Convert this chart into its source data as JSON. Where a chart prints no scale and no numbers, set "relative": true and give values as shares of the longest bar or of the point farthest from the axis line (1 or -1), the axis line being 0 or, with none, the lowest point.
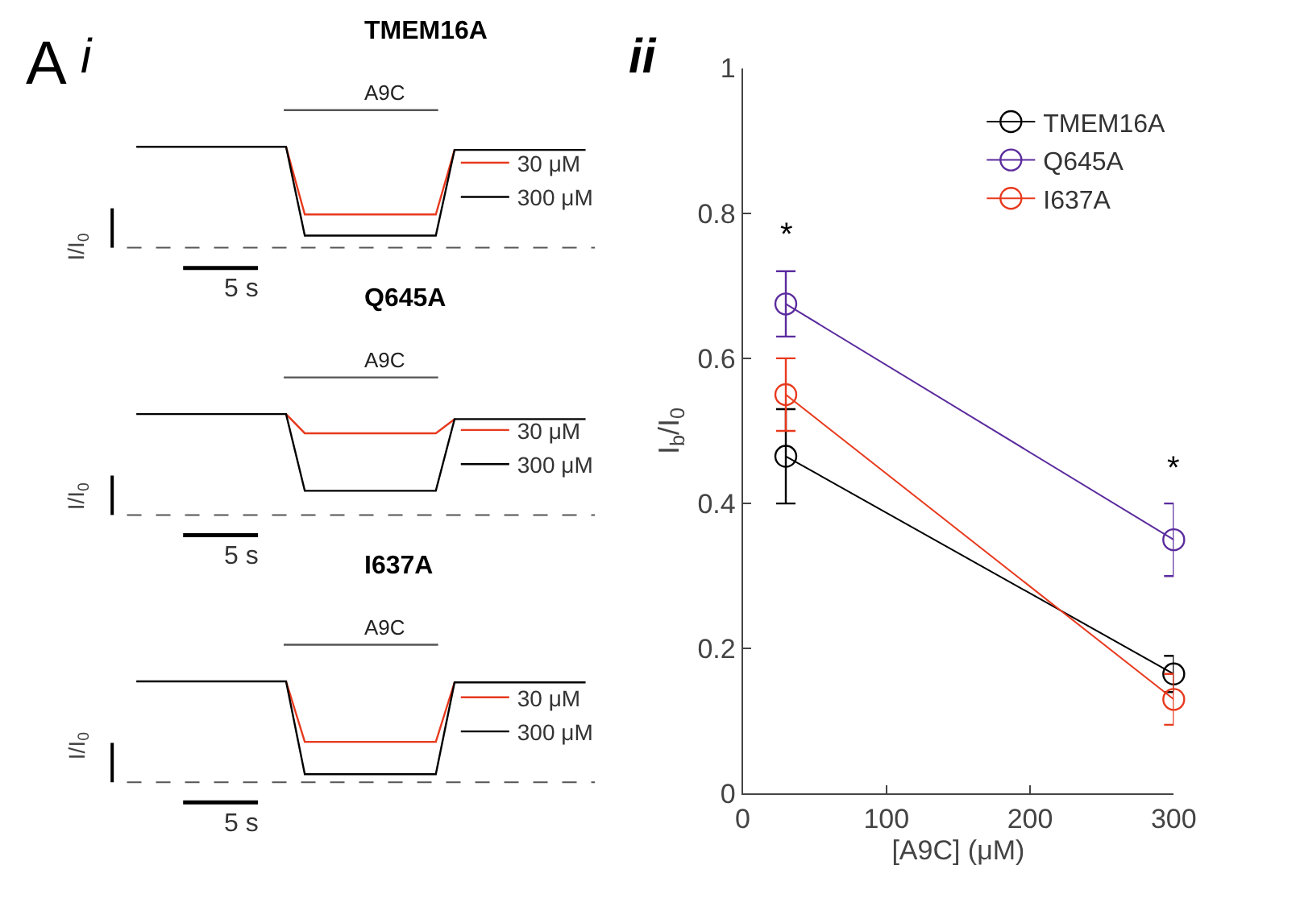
{
  "chart_data": [
    {
      "type": "line",
      "title": "TMEM16A",
      "relative": true,
      "categories": [
        null,
        null,
        null,
        null,
        null,
        null,
        null,
        null,
        null,
        null,
        null,
        null,
        null,
        null,
        null,
        null,
        null,
        null,
        null,
        null,
        null,
        null,
        null,
        null,
        null
      ],
      "series": [
        {
          "name": "30 μM",
          "color": "#e8391d",
          "values": [
            null,
            null,
            null,
            null,
            null,
            null,
            null,
            null,
            1,
            0.33,
            0.33,
            0.33,
            0.33,
            0.33,
            0.33,
            0.33,
            0.33,
            0.97,
            null,
            null,
            null,
            null,
            null,
            null,
            null
          ]
        },
        {
          "name": "300 μM",
          "color": "#000000",
          "values": [
            1,
            1,
            1,
            1,
            1,
            1,
            1,
            1,
            1,
            0.12,
            0.12,
            0.12,
            0.12,
            0.12,
            0.12,
            0.12,
            0.12,
            0.97,
            0.97,
            0.97,
            0.97,
            0.97,
            0.97,
            0.97,
            0.97
          ]
        }
      ],
      "ref_lines": [
        {
          "axis": "y",
          "value": 0,
          "color": "#555555",
          "line_style": "dashed"
        }
      ],
      "annotations": [
        "A",
        "i",
        "A9C",
        "I/I$_{0}$",
        "5 s"
      ],
      "legend": "right"
    },
    {
      "type": "line",
      "title": "Q645A",
      "relative": true,
      "categories": [
        null,
        null,
        null,
        null,
        null,
        null,
        null,
        null,
        null,
        null,
        null,
        null,
        null,
        null,
        null,
        null,
        null,
        null,
        null,
        null,
        null,
        null,
        null,
        null,
        null
      ],
      "series": [
        {
          "name": "30 μM",
          "color": "#e8391d",
          "values": [
            null,
            null,
            null,
            null,
            null,
            null,
            null,
            null,
            1,
            0.81,
            0.81,
            0.81,
            0.81,
            0.81,
            0.81,
            0.81,
            0.81,
            0.95,
            null,
            null,
            null,
            null,
            null,
            null,
            null
          ]
        },
        {
          "name": "300 μM",
          "color": "#000000",
          "values": [
            1,
            1,
            1,
            1,
            1,
            1,
            1,
            1,
            1,
            0.24,
            0.24,
            0.24,
            0.24,
            0.24,
            0.24,
            0.24,
            0.24,
            0.95,
            0.95,
            0.95,
            0.95,
            0.95,
            0.95,
            0.95,
            0.95
          ]
        }
      ],
      "ref_lines": [
        {
          "axis": "y",
          "value": 0,
          "color": "#555555",
          "line_style": "dashed"
        }
      ],
      "annotations": [
        "A9C",
        "I/I$_{0}$",
        "5 s"
      ],
      "legend": "right"
    },
    {
      "type": "line",
      "title": "I637A",
      "relative": true,
      "categories": [
        null,
        null,
        null,
        null,
        null,
        null,
        null,
        null,
        null,
        null,
        null,
        null,
        null,
        null,
        null,
        null,
        null,
        null,
        null,
        null,
        null,
        null,
        null,
        null,
        null
      ],
      "series": [
        {
          "name": "30 μM",
          "color": "#e8391d",
          "values": [
            null,
            null,
            null,
            null,
            null,
            null,
            null,
            null,
            1,
            0.4,
            0.4,
            0.4,
            0.4,
            0.4,
            0.4,
            0.4,
            0.4,
            0.99,
            null,
            null,
            null,
            null,
            null,
            null,
            null
          ]
        },
        {
          "name": "300 μM",
          "color": "#000000",
          "values": [
            1,
            1,
            1,
            1,
            1,
            1,
            1,
            1,
            1,
            0.08,
            0.08,
            0.08,
            0.08,
            0.08,
            0.08,
            0.08,
            0.08,
            0.99,
            0.99,
            0.99,
            0.99,
            0.99,
            0.99,
            0.99,
            0.99
          ]
        }
      ],
      "ref_lines": [
        {
          "axis": "y",
          "value": 0,
          "color": "#555555",
          "line_style": "dashed"
        }
      ],
      "annotations": [
        "A9C",
        "I/I$_{0}$",
        "5 s"
      ],
      "legend": "right"
    },
    {
      "type": "line",
      "x": [
        30,
        300
      ],
      "xlabel": "[A9C] (μM)",
      "ylabel": "I$_{b}$/I$_{0}$",
      "xlim": [
        0,
        300
      ],
      "xticks": [
        0,
        100,
        200,
        300
      ],
      "ylim": [
        0,
        1
      ],
      "yticks": [
        0,
        0.2,
        0.4,
        0.6,
        0.8,
        1
      ],
      "marker": "circle",
      "legend": "top right",
      "series": [
        {
          "name": "TMEM16A",
          "color": "#000000",
          "values": [
            0.465,
            0.165
          ],
          "errors": [
            [
              0.4,
              0.53
            ],
            [
              0.14,
              0.19
            ]
          ]
        },
        {
          "name": "Q645A",
          "color": "#5b2c9e",
          "values": [
            0.675,
            0.35
          ],
          "errors": [
            [
              0.63,
              0.72
            ],
            [
              0.3,
              0.4
            ]
          ]
        },
        {
          "name": "I637A",
          "color": "#e8391d",
          "values": [
            0.55,
            0.13
          ],
          "errors": [
            [
              0.5,
              0.6
            ],
            [
              0.095,
              0.165
            ]
          ]
        }
      ],
      "annotations": [
        "ii",
        "*",
        "*"
      ]
    }
  ]
}
